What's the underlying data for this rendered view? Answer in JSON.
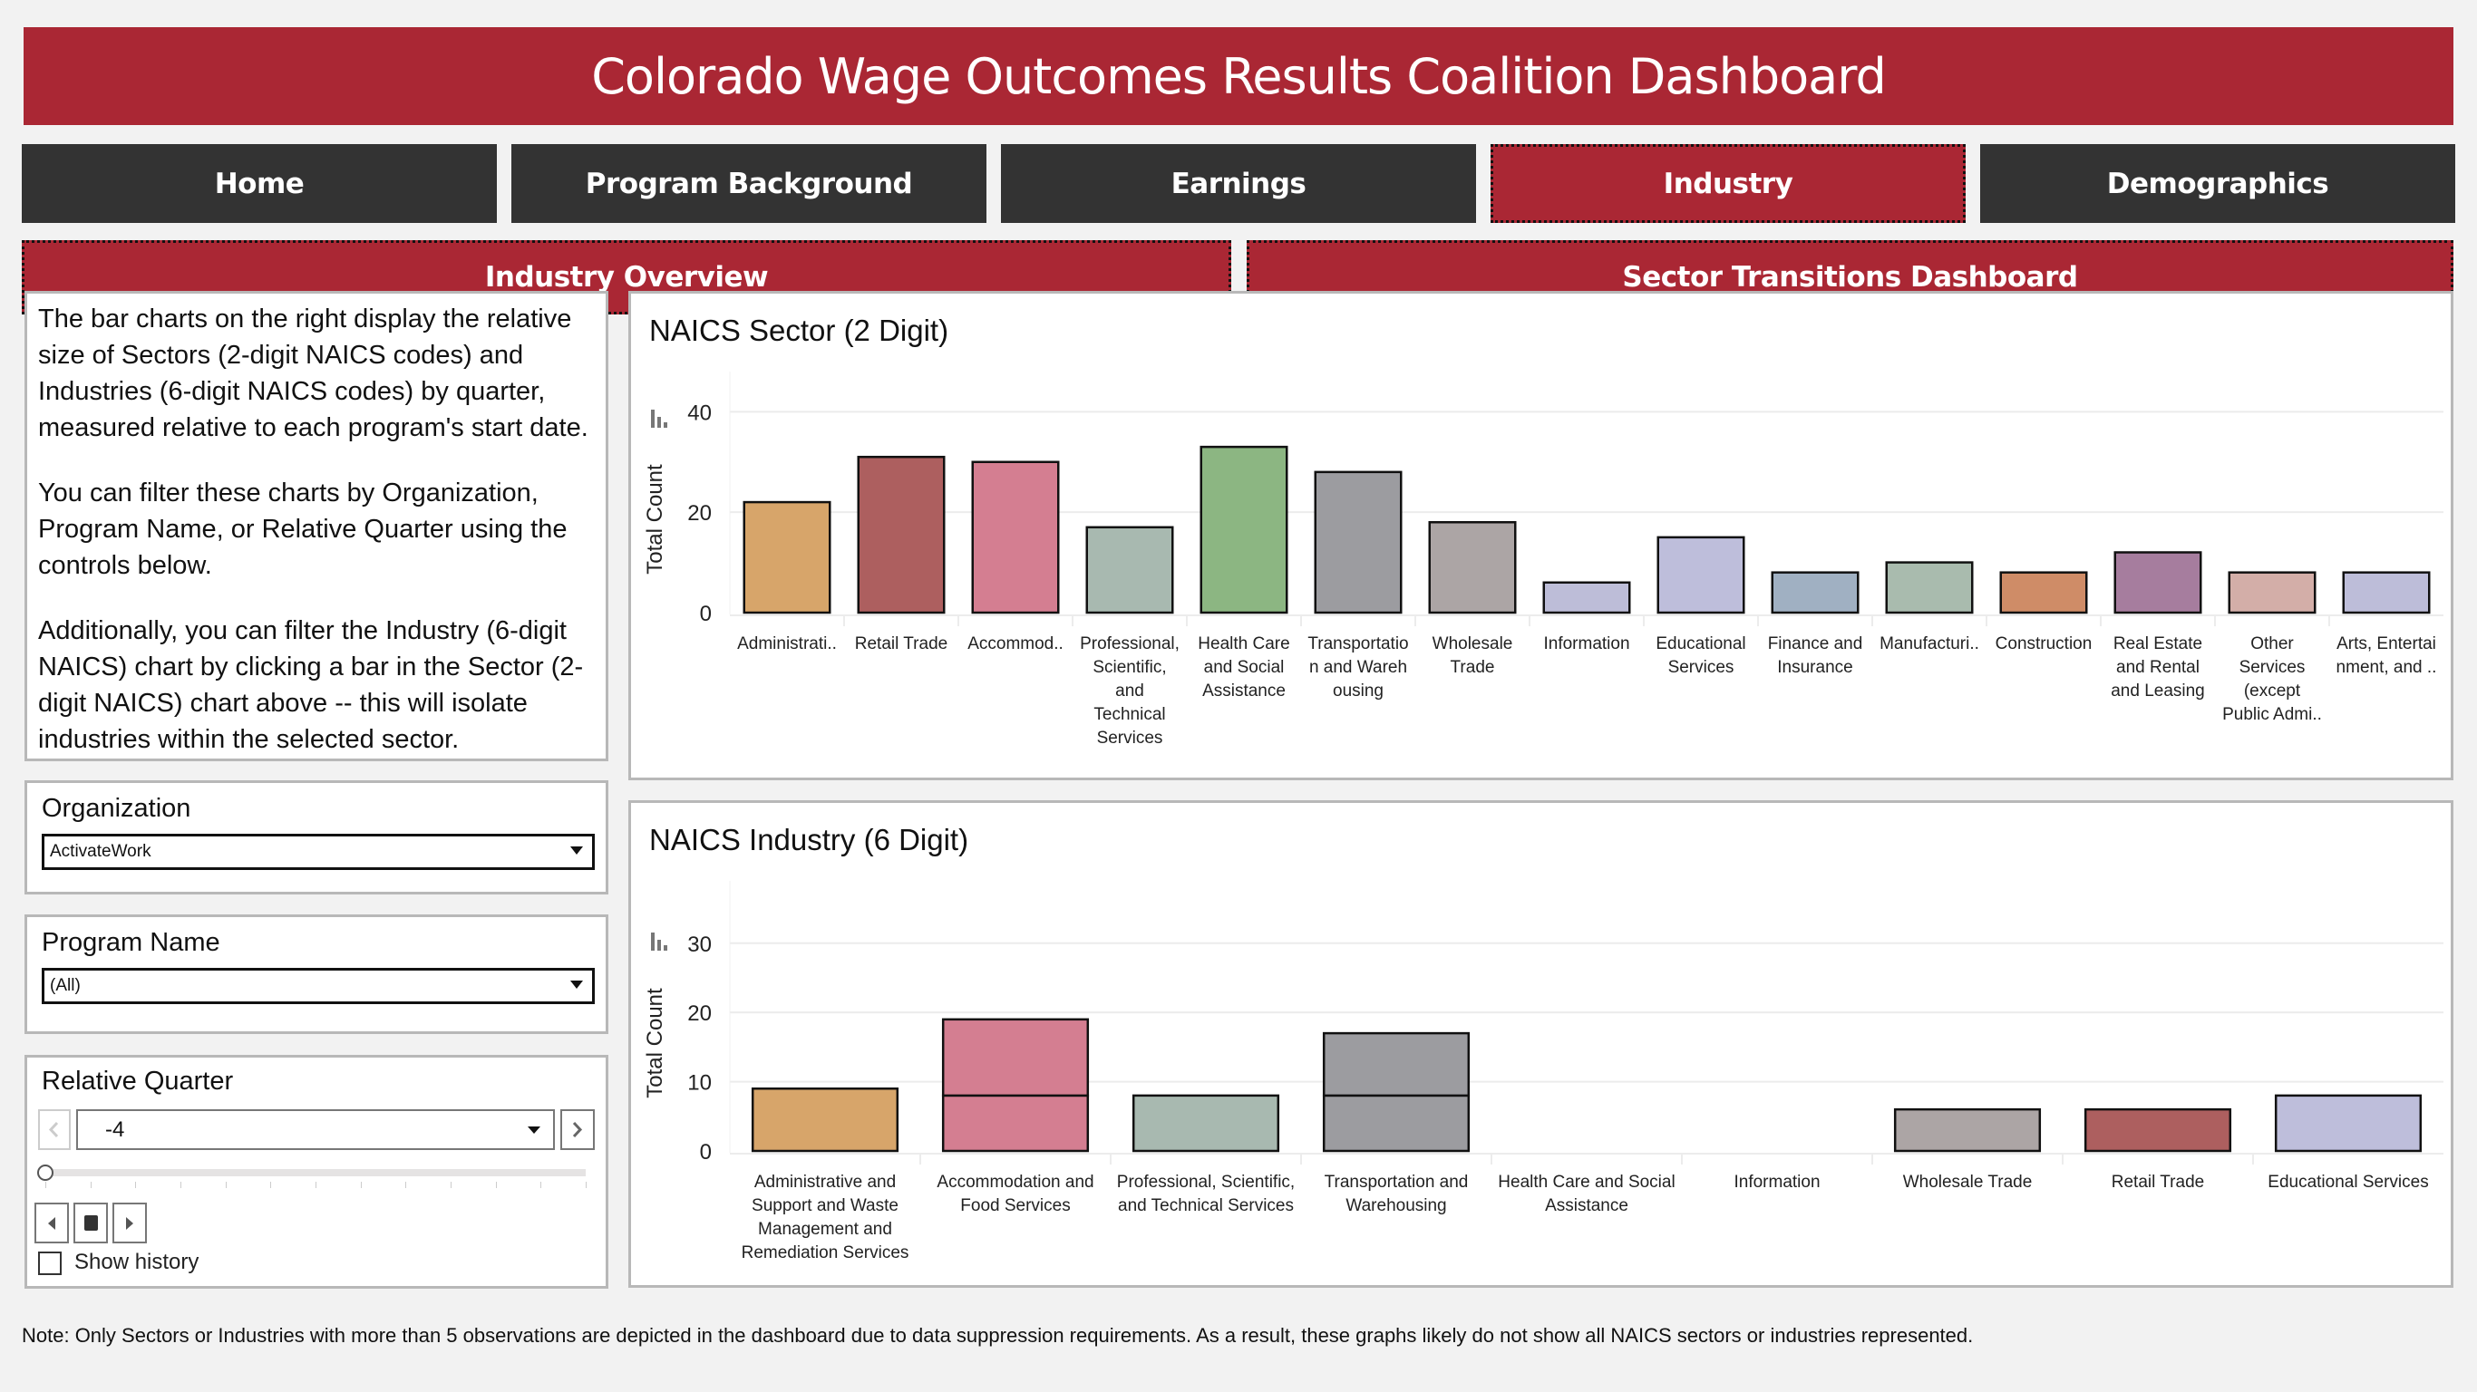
{
  "header": {
    "title": "Colorado Wage Outcomes Results Coalition Dashboard"
  },
  "nav": {
    "items": [
      {
        "label": "Home",
        "active": false
      },
      {
        "label": "Program Background",
        "active": false
      },
      {
        "label": "Earnings",
        "active": false
      },
      {
        "label": "Industry",
        "active": true
      },
      {
        "label": "Demographics",
        "active": false
      }
    ]
  },
  "subnav": {
    "items": [
      {
        "label": "Industry Overview"
      },
      {
        "label": "Sector Transitions Dashboard"
      }
    ]
  },
  "intro": {
    "paragraphs": [
      "The bar charts on the right display the relative size of Sectors (2-digit NAICS codes) and Industries (6-digit NAICS codes) by quarter, measured relative to each program's start date.",
      "You can filter these charts by Organization, Program Name, or Relative Quarter using the controls below.",
      "Additionally, you can filter the Industry (6-digit NAICS) chart by clicking a bar in the Sector (2-digit NAICS) chart above -- this will isolate industries within the selected sector."
    ]
  },
  "filters": {
    "organization": {
      "label": "Organization",
      "value": "ActivateWork"
    },
    "program": {
      "label": "Program Name",
      "value": "(All)"
    },
    "quarter": {
      "label": "Relative Quarter",
      "value": "-4",
      "slider_position": 0,
      "slider_steps": 13,
      "show_history_label": "Show history",
      "show_history_checked": false
    }
  },
  "note": "Note: Only Sectors or Industries with more than 5 observations are depicted in the dashboard due to data suppression requirements. As a result, these graphs likely do not show all NAICS sectors or industries represented.",
  "chart_data": [
    {
      "type": "bar",
      "title": "NAICS Sector (2 Digit)",
      "xlabel": "",
      "ylabel": "Total Count",
      "ylim": [
        0,
        48
      ],
      "yticks": [
        0,
        20,
        40
      ],
      "grid": true,
      "categories": [
        [
          "Administrati.."
        ],
        [
          "Retail Trade"
        ],
        [
          "Accommod.."
        ],
        [
          "Professional,",
          "Scientific,",
          "and",
          "Technical",
          "Services"
        ],
        [
          "Health Care",
          "and Social",
          "Assistance"
        ],
        [
          "Transportatio",
          "n and Wareh",
          "ousing"
        ],
        [
          "Wholesale",
          "Trade"
        ],
        [
          "Information"
        ],
        [
          "Educational",
          "Services"
        ],
        [
          "Finance and",
          "Insurance"
        ],
        [
          "Manufacturi.."
        ],
        [
          "Construction"
        ],
        [
          "Real Estate",
          "and Rental",
          "and Leasing"
        ],
        [
          "Other",
          "Services",
          "(except",
          "Public Admi.."
        ],
        [
          "Arts, Entertai",
          "nment, and .."
        ]
      ],
      "values": [
        22,
        31,
        30,
        17,
        33,
        28,
        18,
        6,
        15,
        8,
        10,
        8,
        12,
        8,
        8
      ],
      "colors": [
        "#d7a56a",
        "#ad5f5f",
        "#d47e91",
        "#a8b9b0",
        "#8cb682",
        "#9c9ca0",
        "#aca5a5",
        "#bdbdd8",
        "#bebedb",
        "#a0b0c2",
        "#a9bbae",
        "#cf8c67",
        "#a67d9e",
        "#d3aea8",
        "#bdbdd9"
      ]
    },
    {
      "type": "bar",
      "title": "NAICS Industry (6 Digit)",
      "xlabel": "",
      "ylabel": "Total Count",
      "ylim": [
        0,
        39
      ],
      "yticks": [
        0,
        10,
        20,
        30
      ],
      "grid": true,
      "stacked": true,
      "categories": [
        [
          "Administrative and",
          "Support and Waste",
          "Management and",
          "Remediation Services"
        ],
        [
          "Accommodation and",
          "Food Services"
        ],
        [
          "Professional, Scientific,",
          "and Technical Services"
        ],
        [
          "Transportation and",
          "Warehousing"
        ],
        [
          "Health Care and Social",
          "Assistance"
        ],
        [
          "Information"
        ],
        [
          "Wholesale Trade"
        ],
        [
          "Retail Trade"
        ],
        [
          "Educational Services"
        ]
      ],
      "segments": [
        [
          9
        ],
        [
          8,
          11
        ],
        [
          8
        ],
        [
          8,
          9
        ],
        [],
        [],
        [
          6
        ],
        [
          6
        ],
        [
          8
        ]
      ],
      "colors": [
        "#d7a56a",
        "#d47e91",
        "#a8b9b0",
        "#9c9ca0",
        "#8cb682",
        "#bdbdd8",
        "#aca5a5",
        "#ad5f5f",
        "#bebedb"
      ]
    }
  ]
}
